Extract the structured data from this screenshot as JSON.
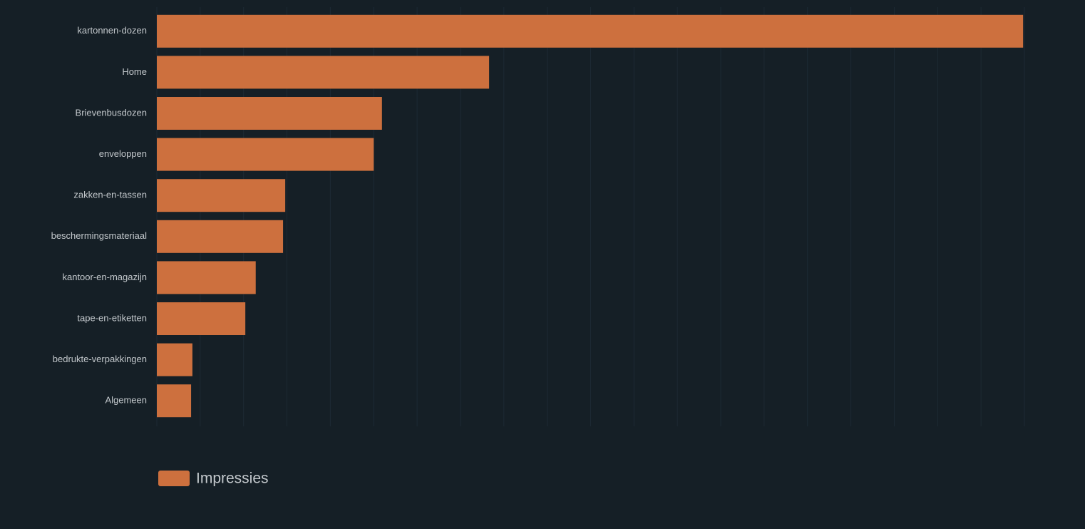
{
  "chart_data": {
    "type": "barh",
    "categories": [
      "kartonnen-dozen",
      "Home",
      "Brievenbusdozen",
      "enveloppen",
      "zakken-en-tassen",
      "beschermingsmateriaal",
      "kantoor-en-magazijn",
      "tape-en-etiketten",
      "bedrukte-verpakkingen",
      "Algemeen"
    ],
    "series": [
      {
        "name": "Impressies",
        "color": "#cd703e",
        "values": [
          19.97,
          7.66,
          5.19,
          5.0,
          2.96,
          2.91,
          2.28,
          2.04,
          0.82,
          0.79
        ]
      }
    ],
    "xlim": [
      0,
      20
    ],
    "xticks": [
      0,
      1,
      2,
      3,
      4,
      5,
      6,
      7,
      8,
      9,
      10,
      11,
      12,
      13,
      14,
      15,
      16,
      17,
      18,
      19,
      20
    ],
    "grid": true,
    "legend": "bottom-left"
  }
}
